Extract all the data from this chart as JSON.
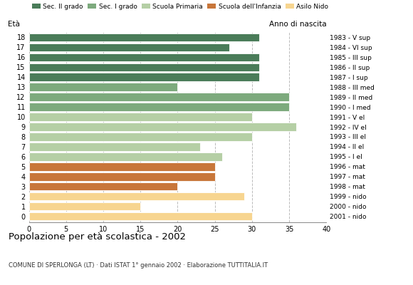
{
  "ages": [
    18,
    17,
    16,
    15,
    14,
    13,
    12,
    11,
    10,
    9,
    8,
    7,
    6,
    5,
    4,
    3,
    2,
    1,
    0
  ],
  "values": [
    31,
    27,
    31,
    31,
    31,
    20,
    35,
    35,
    30,
    36,
    30,
    23,
    26,
    25,
    25,
    20,
    29,
    15,
    30
  ],
  "birth_years": [
    "1983 - V sup",
    "1984 - VI sup",
    "1985 - III sup",
    "1986 - II sup",
    "1987 - I sup",
    "1988 - III med",
    "1989 - II med",
    "1990 - I med",
    "1991 - V el",
    "1992 - IV el",
    "1993 - III el",
    "1994 - II el",
    "1995 - I el",
    "1996 - mat",
    "1997 - mat",
    "1998 - mat",
    "1999 - nido",
    "2000 - nido",
    "2001 - nido"
  ],
  "colors_by_age": {
    "18": "#4a7c59",
    "17": "#4a7c59",
    "16": "#4a7c59",
    "15": "#4a7c59",
    "14": "#4a7c59",
    "13": "#7daa7d",
    "12": "#7daa7d",
    "11": "#7daa7d",
    "10": "#b5cfa5",
    "9": "#b5cfa5",
    "8": "#b5cfa5",
    "7": "#b5cfa5",
    "6": "#b5cfa5",
    "5": "#c8763a",
    "4": "#c8763a",
    "3": "#c8763a",
    "2": "#f7d590",
    "1": "#f7d590",
    "0": "#f7d590"
  },
  "legend_labels": [
    "Sec. II grado",
    "Sec. I grado",
    "Scuola Primaria",
    "Scuola dell'Infanzia",
    "Asilo Nido"
  ],
  "legend_colors": [
    "#4a7c59",
    "#7daa7d",
    "#b5cfa5",
    "#c8763a",
    "#f7d590"
  ],
  "title": "Popolazione per età scolastica - 2002",
  "subtitle": "COMUNE DI SPERLONGA (LT) · Dati ISTAT 1° gennaio 2002 · Elaborazione TUTTITALIA.IT",
  "label_left": "Età",
  "label_right": "Anno di nascita",
  "xlim": [
    0,
    40
  ],
  "xticks": [
    0,
    5,
    10,
    15,
    20,
    25,
    30,
    35,
    40
  ],
  "bar_height": 0.82,
  "grid_color": "#bbbbbb",
  "bar_edge_color": "#ffffff"
}
